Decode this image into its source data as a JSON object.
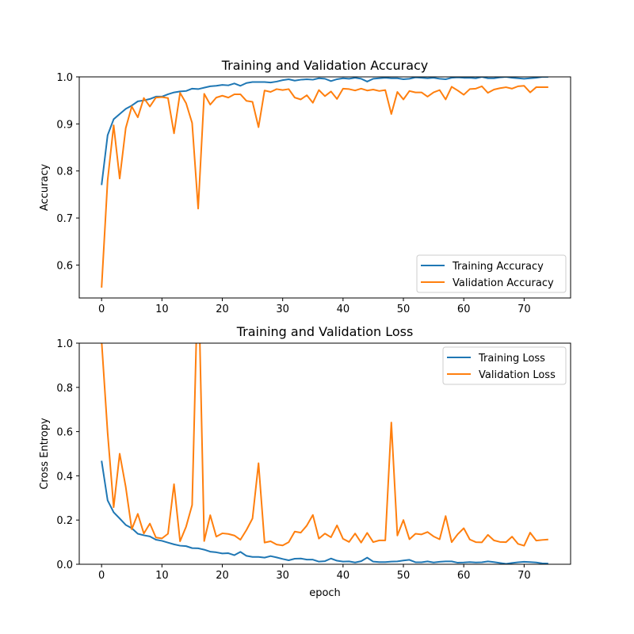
{
  "chart_data": [
    {
      "type": "line",
      "title": "Training and Validation Accuracy",
      "xlabel": "",
      "ylabel": "Accuracy",
      "xlim": [
        -3.7,
        77.7
      ],
      "ylim": [
        0.53,
        1.0
      ],
      "xticks": [
        0,
        10,
        20,
        30,
        40,
        50,
        60,
        70
      ],
      "yticks": [
        0.6,
        0.7,
        0.8,
        0.9,
        1.0
      ],
      "ytick_labels": [
        "0.6",
        "0.7",
        "0.8",
        "0.9",
        "1.0"
      ],
      "legend_position": "lower-right",
      "series": [
        {
          "name": "Training Accuracy",
          "color": "#1f77b4",
          "values": [
            0.77,
            0.876,
            0.91,
            0.921,
            0.932,
            0.939,
            0.948,
            0.95,
            0.953,
            0.958,
            0.958,
            0.963,
            0.967,
            0.969,
            0.97,
            0.975,
            0.974,
            0.977,
            0.98,
            0.981,
            0.983,
            0.982,
            0.986,
            0.981,
            0.987,
            0.989,
            0.989,
            0.989,
            0.988,
            0.99,
            0.993,
            0.995,
            0.992,
            0.994,
            0.995,
            0.994,
            0.997,
            0.996,
            0.991,
            0.995,
            0.997,
            0.996,
            0.998,
            0.996,
            0.99,
            0.996,
            0.997,
            0.998,
            0.997,
            0.997,
            0.995,
            0.996,
            0.999,
            0.998,
            0.997,
            0.998,
            0.996,
            0.995,
            0.998,
            0.999,
            0.998,
            0.998,
            0.997,
            1.0,
            0.997,
            0.997,
            0.999,
            1.0,
            0.998,
            0.997,
            0.996,
            0.997,
            0.998,
            1.0,
            1.0
          ]
        },
        {
          "name": "Validation Accuracy",
          "color": "#ff7f0e",
          "values": [
            0.552,
            0.78,
            0.897,
            0.784,
            0.891,
            0.937,
            0.914,
            0.955,
            0.937,
            0.956,
            0.957,
            0.955,
            0.88,
            0.966,
            0.944,
            0.902,
            0.72,
            0.964,
            0.941,
            0.956,
            0.96,
            0.956,
            0.963,
            0.963,
            0.949,
            0.947,
            0.893,
            0.971,
            0.968,
            0.974,
            0.972,
            0.974,
            0.956,
            0.952,
            0.961,
            0.945,
            0.972,
            0.959,
            0.969,
            0.953,
            0.975,
            0.974,
            0.971,
            0.975,
            0.971,
            0.973,
            0.97,
            0.972,
            0.921,
            0.968,
            0.952,
            0.97,
            0.967,
            0.967,
            0.958,
            0.967,
            0.972,
            0.952,
            0.979,
            0.971,
            0.962,
            0.974,
            0.975,
            0.98,
            0.966,
            0.973,
            0.976,
            0.978,
            0.975,
            0.98,
            0.981,
            0.967,
            0.978,
            0.978,
            0.978
          ]
        }
      ]
    },
    {
      "type": "line",
      "title": "Training and Validation Loss",
      "xlabel": "epoch",
      "ylabel": "Cross Entropy",
      "xlim": [
        -3.7,
        77.7
      ],
      "ylim": [
        0.0,
        1.0
      ],
      "xticks": [
        0,
        10,
        20,
        30,
        40,
        50,
        60,
        70
      ],
      "yticks": [
        0.0,
        0.2,
        0.4,
        0.6,
        0.8,
        1.0
      ],
      "ytick_labels": [
        "0.0",
        "0.2",
        "0.4",
        "0.6",
        "0.8",
        "1.0"
      ],
      "legend_position": "upper-right",
      "series": [
        {
          "name": "Training Loss",
          "color": "#1f77b4",
          "values": [
            0.468,
            0.289,
            0.235,
            0.207,
            0.178,
            0.163,
            0.138,
            0.131,
            0.126,
            0.111,
            0.106,
            0.098,
            0.09,
            0.084,
            0.082,
            0.073,
            0.072,
            0.066,
            0.057,
            0.054,
            0.049,
            0.05,
            0.041,
            0.056,
            0.038,
            0.033,
            0.033,
            0.03,
            0.037,
            0.031,
            0.024,
            0.018,
            0.025,
            0.026,
            0.021,
            0.021,
            0.012,
            0.014,
            0.026,
            0.016,
            0.012,
            0.013,
            0.008,
            0.014,
            0.03,
            0.012,
            0.01,
            0.01,
            0.012,
            0.013,
            0.017,
            0.02,
            0.009,
            0.009,
            0.013,
            0.008,
            0.011,
            0.013,
            0.013,
            0.007,
            0.008,
            0.01,
            0.008,
            0.009,
            0.013,
            0.01,
            0.006,
            0.002,
            0.006,
            0.009,
            0.011,
            0.01,
            0.008,
            0.004,
            0.003
          ]
        },
        {
          "name": "Validation Loss",
          "color": "#ff7f0e",
          "values": [
            1.01,
            0.595,
            0.258,
            0.5,
            0.35,
            0.158,
            0.228,
            0.139,
            0.184,
            0.121,
            0.117,
            0.138,
            0.362,
            0.104,
            0.17,
            0.268,
            1.35,
            0.105,
            0.222,
            0.125,
            0.14,
            0.137,
            0.13,
            0.111,
            0.155,
            0.207,
            0.457,
            0.098,
            0.104,
            0.089,
            0.085,
            0.1,
            0.148,
            0.143,
            0.175,
            0.223,
            0.116,
            0.139,
            0.122,
            0.176,
            0.115,
            0.101,
            0.139,
            0.098,
            0.142,
            0.1,
            0.108,
            0.108,
            0.641,
            0.13,
            0.2,
            0.113,
            0.138,
            0.135,
            0.146,
            0.126,
            0.113,
            0.218,
            0.1,
            0.136,
            0.163,
            0.112,
            0.1,
            0.099,
            0.133,
            0.108,
            0.101,
            0.1,
            0.125,
            0.092,
            0.084,
            0.143,
            0.107,
            0.11,
            0.112
          ]
        }
      ]
    }
  ]
}
